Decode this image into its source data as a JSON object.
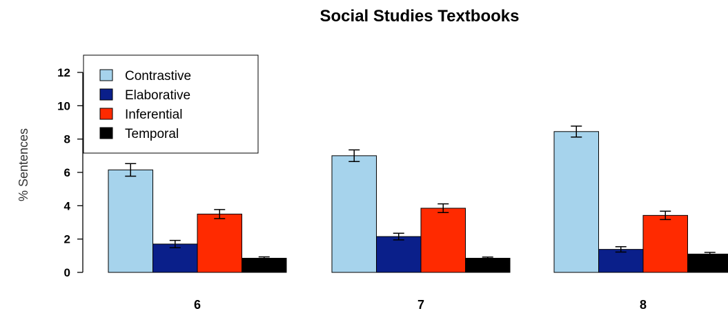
{
  "chart_data": {
    "type": "bar",
    "title": "Social Studies Textbooks",
    "xlabel": "",
    "ylabel": "% Sentences",
    "categories": [
      "6",
      "7",
      "8"
    ],
    "ylim": [
      0,
      12
    ],
    "yticks": [
      "0",
      "2",
      "4",
      "6",
      "8",
      "10",
      "12"
    ],
    "series": [
      {
        "name": "Contrastive",
        "color": "#a6d3ec",
        "values": [
          6.15,
          7.0,
          8.45
        ],
        "errors": [
          0.38,
          0.35,
          0.33
        ]
      },
      {
        "name": "Elaborative",
        "color": "#0a1f8a",
        "values": [
          1.7,
          2.15,
          1.38
        ],
        "errors": [
          0.22,
          0.2,
          0.16
        ]
      },
      {
        "name": "Inferential",
        "color": "#ff2a00",
        "values": [
          3.5,
          3.85,
          3.42
        ],
        "errors": [
          0.27,
          0.26,
          0.25
        ]
      },
      {
        "name": "Temporal",
        "color": "#000000",
        "values": [
          0.85,
          0.85,
          1.1
        ],
        "errors": [
          0.08,
          0.07,
          0.1
        ]
      }
    ],
    "legend_position": "top-left",
    "grid": false
  }
}
